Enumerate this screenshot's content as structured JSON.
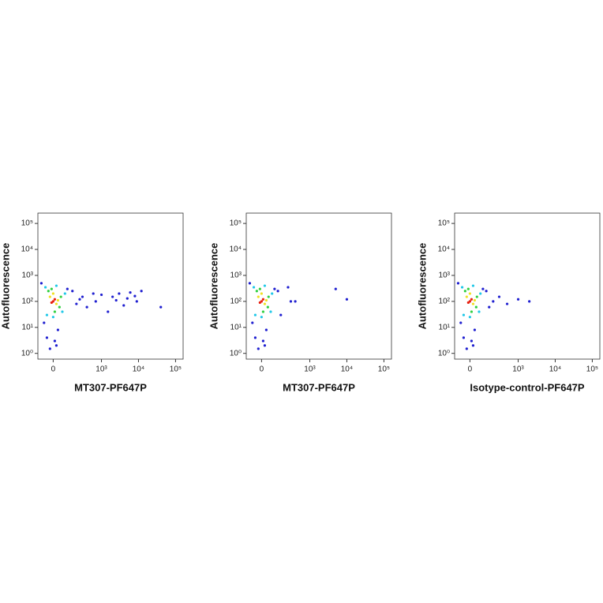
{
  "chart_data": [
    {
      "type": "scatter",
      "x_label": "MT307-PF647P",
      "y_label": "Autofluorescence",
      "xscale": "arcsinh",
      "cofactor": 100,
      "yscale": "log",
      "xlim": [
        -110,
        160000
      ],
      "ylim": [
        0.6,
        250000
      ],
      "xticks": [
        0,
        {
          "value": 1000,
          "label": "10³"
        },
        {
          "value": 10000,
          "label": "10⁴"
        },
        {
          "value": 100000,
          "label": "10⁵"
        }
      ],
      "yticks": [
        {
          "value": 1,
          "label": "10⁰"
        },
        {
          "value": 10,
          "label": "10¹"
        },
        {
          "value": 100,
          "label": "10²"
        },
        {
          "value": 1000,
          "label": "10³"
        },
        {
          "value": 10000,
          "label": "10⁴"
        },
        {
          "value": 100000,
          "label": "10⁵"
        }
      ],
      "series": [
        {
          "color": "#1f1fd0",
          "x": [
            -80,
            100,
            -60,
            30,
            150,
            300,
            600,
            1000,
            2000,
            3000,
            5000,
            8000,
            12000,
            -40,
            10,
            200,
            400,
            1500,
            4000,
            40000,
            20,
            -20,
            250,
            700,
            2500,
            6000,
            9000
          ],
          "y": [
            500,
            300,
            15,
            8,
            250,
            150,
            200,
            180,
            150,
            200,
            130,
            160,
            250,
            4,
            3,
            80,
            60,
            40,
            70,
            60,
            2,
            1.5,
            120,
            100,
            110,
            220,
            100
          ]
        },
        {
          "color": "#20c8e8",
          "x": [
            -50,
            60,
            -40,
            20,
            80,
            0
          ],
          "y": [
            350,
            40,
            30,
            400,
            200,
            25
          ]
        },
        {
          "color": "#30d040",
          "x": [
            -30,
            40,
            -10,
            50,
            10
          ],
          "y": [
            250,
            60,
            300,
            150,
            40
          ]
        },
        {
          "color": "#f0e020",
          "x": [
            -20,
            20,
            0,
            30
          ],
          "y": [
            150,
            80,
            200,
            110
          ]
        },
        {
          "color": "#e82010",
          "x": [
            0,
            10,
            -10
          ],
          "y": [
            100,
            120,
            90
          ]
        }
      ]
    },
    {
      "type": "scatter",
      "x_label": "MT307-PF647P",
      "y_label": "Autofluorescence",
      "xscale": "arcsinh",
      "cofactor": 100,
      "yscale": "log",
      "xlim": [
        -110,
        160000
      ],
      "ylim": [
        0.6,
        250000
      ],
      "xticks": [
        0,
        {
          "value": 1000,
          "label": "10³"
        },
        {
          "value": 10000,
          "label": "10⁴"
        },
        {
          "value": 100000,
          "label": "10⁵"
        }
      ],
      "yticks": [
        {
          "value": 1,
          "label": "10⁰"
        },
        {
          "value": 10,
          "label": "10¹"
        },
        {
          "value": 100,
          "label": "10²"
        },
        {
          "value": 1000,
          "label": "10³"
        },
        {
          "value": 10000,
          "label": "10⁴"
        },
        {
          "value": 100000,
          "label": "10⁵"
        }
      ],
      "series": [
        {
          "color": "#1f1fd0",
          "x": [
            -80,
            90,
            -60,
            30,
            120,
            -40,
            10,
            20,
            -20,
            300,
            400,
            5000,
            10000,
            150,
            250
          ],
          "y": [
            500,
            300,
            15,
            8,
            250,
            4,
            3,
            2,
            1.5,
            100,
            100,
            300,
            120,
            30,
            350
          ]
        },
        {
          "color": "#20c8e8",
          "x": [
            -50,
            60,
            -40,
            20,
            70,
            0
          ],
          "y": [
            350,
            40,
            30,
            400,
            200,
            25
          ]
        },
        {
          "color": "#30d040",
          "x": [
            -30,
            40,
            -10,
            45,
            10
          ],
          "y": [
            250,
            60,
            300,
            150,
            40
          ]
        },
        {
          "color": "#f0e020",
          "x": [
            -20,
            20,
            0,
            30
          ],
          "y": [
            150,
            80,
            200,
            110
          ]
        },
        {
          "color": "#e82010",
          "x": [
            0,
            10,
            -10
          ],
          "y": [
            100,
            120,
            90
          ]
        }
      ]
    },
    {
      "type": "scatter",
      "x_label": "Isotype-control-PF647P",
      "y_label": "Autofluorescence",
      "xscale": "arcsinh",
      "cofactor": 100,
      "yscale": "log",
      "xlim": [
        -110,
        160000
      ],
      "ylim": [
        0.6,
        250000
      ],
      "xticks": [
        0,
        {
          "value": 1000,
          "label": "10³"
        },
        {
          "value": 10000,
          "label": "10⁴"
        },
        {
          "value": 100000,
          "label": "10⁵"
        }
      ],
      "yticks": [
        {
          "value": 1,
          "label": "10⁰"
        },
        {
          "value": 10,
          "label": "10¹"
        },
        {
          "value": 100,
          "label": "10²"
        },
        {
          "value": 1000,
          "label": "10³"
        },
        {
          "value": 10000,
          "label": "10⁴"
        },
        {
          "value": 100000,
          "label": "10⁵"
        }
      ],
      "series": [
        {
          "color": "#1f1fd0",
          "x": [
            -80,
            90,
            -60,
            30,
            120,
            -40,
            10,
            20,
            -20,
            200,
            300,
            500,
            1000,
            2000,
            150
          ],
          "y": [
            500,
            300,
            15,
            8,
            250,
            4,
            3,
            2,
            1.5,
            100,
            150,
            80,
            120,
            100,
            60
          ]
        },
        {
          "color": "#20c8e8",
          "x": [
            -50,
            60,
            -40,
            20,
            70,
            0
          ],
          "y": [
            350,
            40,
            30,
            400,
            200,
            25
          ]
        },
        {
          "color": "#30d040",
          "x": [
            -30,
            40,
            -10,
            45,
            10
          ],
          "y": [
            250,
            60,
            300,
            150,
            40
          ]
        },
        {
          "color": "#f0e020",
          "x": [
            -20,
            20,
            0,
            30
          ],
          "y": [
            150,
            80,
            200,
            110
          ]
        },
        {
          "color": "#e82010",
          "x": [
            0,
            10,
            -10
          ],
          "y": [
            100,
            120,
            90
          ]
        }
      ]
    }
  ]
}
